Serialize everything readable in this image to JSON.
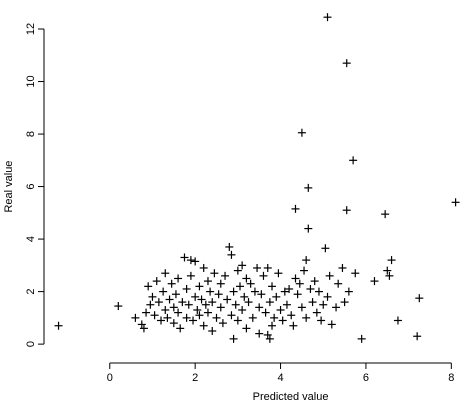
{
  "chart_data": {
    "type": "scatter",
    "title": "",
    "xlabel": "Predicted value",
    "ylabel": "Real value",
    "xlim": [
      -1.4,
      8.25
    ],
    "ylim": [
      -0.3,
      12.8
    ],
    "xticks": [
      0,
      2,
      4,
      6,
      8
    ],
    "yticks": [
      0,
      2,
      4,
      6,
      8,
      10,
      12
    ],
    "grid": false,
    "marker": "plus",
    "points": [
      {
        "x": -1.2,
        "y": 0.7
      },
      {
        "x": 0.2,
        "y": 1.45
      },
      {
        "x": 0.6,
        "y": 1.0
      },
      {
        "x": 0.75,
        "y": 0.75
      },
      {
        "x": 0.8,
        "y": 0.6
      },
      {
        "x": 0.85,
        "y": 1.2
      },
      {
        "x": 0.9,
        "y": 2.2
      },
      {
        "x": 0.95,
        "y": 1.5
      },
      {
        "x": 1.0,
        "y": 1.8
      },
      {
        "x": 1.05,
        "y": 1.1
      },
      {
        "x": 1.1,
        "y": 2.4
      },
      {
        "x": 1.15,
        "y": 1.6
      },
      {
        "x": 1.2,
        "y": 0.9
      },
      {
        "x": 1.25,
        "y": 2.0
      },
      {
        "x": 1.3,
        "y": 1.3
      },
      {
        "x": 1.3,
        "y": 2.7
      },
      {
        "x": 1.35,
        "y": 1.0
      },
      {
        "x": 1.4,
        "y": 1.7
      },
      {
        "x": 1.45,
        "y": 2.3
      },
      {
        "x": 1.5,
        "y": 0.8
      },
      {
        "x": 1.5,
        "y": 1.4
      },
      {
        "x": 1.55,
        "y": 1.9
      },
      {
        "x": 1.6,
        "y": 1.2
      },
      {
        "x": 1.6,
        "y": 2.5
      },
      {
        "x": 1.65,
        "y": 0.6
      },
      {
        "x": 1.7,
        "y": 1.6
      },
      {
        "x": 1.75,
        "y": 3.3
      },
      {
        "x": 1.8,
        "y": 2.1
      },
      {
        "x": 1.8,
        "y": 1.0
      },
      {
        "x": 1.85,
        "y": 1.5
      },
      {
        "x": 1.9,
        "y": 3.2
      },
      {
        "x": 1.9,
        "y": 2.6
      },
      {
        "x": 1.95,
        "y": 0.9
      },
      {
        "x": 2.0,
        "y": 1.8
      },
      {
        "x": 2.0,
        "y": 3.15
      },
      {
        "x": 2.05,
        "y": 1.3
      },
      {
        "x": 2.1,
        "y": 2.2
      },
      {
        "x": 2.1,
        "y": 1.1
      },
      {
        "x": 2.15,
        "y": 1.7
      },
      {
        "x": 2.2,
        "y": 2.9
      },
      {
        "x": 2.2,
        "y": 0.7
      },
      {
        "x": 2.25,
        "y": 1.5
      },
      {
        "x": 2.3,
        "y": 2.4
      },
      {
        "x": 2.3,
        "y": 1.2
      },
      {
        "x": 2.35,
        "y": 2.0
      },
      {
        "x": 2.4,
        "y": 1.6
      },
      {
        "x": 2.4,
        "y": 0.5
      },
      {
        "x": 2.45,
        "y": 2.7
      },
      {
        "x": 2.5,
        "y": 1.0
      },
      {
        "x": 2.55,
        "y": 1.9
      },
      {
        "x": 2.6,
        "y": 2.3
      },
      {
        "x": 2.6,
        "y": 1.4
      },
      {
        "x": 2.65,
        "y": 0.8
      },
      {
        "x": 2.7,
        "y": 2.6
      },
      {
        "x": 2.75,
        "y": 1.7
      },
      {
        "x": 2.8,
        "y": 3.7
      },
      {
        "x": 2.85,
        "y": 3.4
      },
      {
        "x": 2.85,
        "y": 1.1
      },
      {
        "x": 2.9,
        "y": 2.0
      },
      {
        "x": 2.9,
        "y": 0.2
      },
      {
        "x": 2.95,
        "y": 1.5
      },
      {
        "x": 3.0,
        "y": 2.8
      },
      {
        "x": 3.0,
        "y": 0.9
      },
      {
        "x": 3.05,
        "y": 2.2
      },
      {
        "x": 3.1,
        "y": 3.0
      },
      {
        "x": 3.1,
        "y": 1.3
      },
      {
        "x": 3.15,
        "y": 1.8
      },
      {
        "x": 3.2,
        "y": 2.5
      },
      {
        "x": 3.2,
        "y": 0.6
      },
      {
        "x": 3.25,
        "y": 1.6
      },
      {
        "x": 3.3,
        "y": 2.3
      },
      {
        "x": 3.35,
        "y": 1.0
      },
      {
        "x": 3.4,
        "y": 2.0
      },
      {
        "x": 3.45,
        "y": 2.9
      },
      {
        "x": 3.5,
        "y": 1.4
      },
      {
        "x": 3.5,
        "y": 0.4
      },
      {
        "x": 3.55,
        "y": 1.9
      },
      {
        "x": 3.6,
        "y": 2.6
      },
      {
        "x": 3.65,
        "y": 1.2
      },
      {
        "x": 3.7,
        "y": 2.9
      },
      {
        "x": 3.7,
        "y": 0.35
      },
      {
        "x": 3.75,
        "y": 0.2
      },
      {
        "x": 3.75,
        "y": 1.6
      },
      {
        "x": 3.8,
        "y": 2.2
      },
      {
        "x": 3.8,
        "y": 0.7
      },
      {
        "x": 3.85,
        "y": 1.0
      },
      {
        "x": 3.9,
        "y": 1.8
      },
      {
        "x": 3.95,
        "y": 2.7
      },
      {
        "x": 4.0,
        "y": 1.3
      },
      {
        "x": 4.05,
        "y": 0.9
      },
      {
        "x": 4.1,
        "y": 2.0
      },
      {
        "x": 4.15,
        "y": 1.5
      },
      {
        "x": 4.2,
        "y": 2.1
      },
      {
        "x": 4.25,
        "y": 1.1
      },
      {
        "x": 4.3,
        "y": 0.7
      },
      {
        "x": 4.35,
        "y": 2.5
      },
      {
        "x": 4.4,
        "y": 1.9
      },
      {
        "x": 4.45,
        "y": 2.3
      },
      {
        "x": 4.5,
        "y": 8.05
      },
      {
        "x": 4.5,
        "y": 1.4
      },
      {
        "x": 4.55,
        "y": 2.8
      },
      {
        "x": 4.6,
        "y": 3.2
      },
      {
        "x": 4.6,
        "y": 1.0
      },
      {
        "x": 4.65,
        "y": 5.95
      },
      {
        "x": 4.65,
        "y": 4.4
      },
      {
        "x": 4.7,
        "y": 2.1
      },
      {
        "x": 4.75,
        "y": 1.6
      },
      {
        "x": 4.8,
        "y": 2.4
      },
      {
        "x": 4.85,
        "y": 1.2
      },
      {
        "x": 4.9,
        "y": 2.0
      },
      {
        "x": 4.95,
        "y": 0.9
      },
      {
        "x": 5.0,
        "y": 1.5
      },
      {
        "x": 5.05,
        "y": 3.65
      },
      {
        "x": 5.1,
        "y": 12.45
      },
      {
        "x": 5.1,
        "y": 1.8
      },
      {
        "x": 5.15,
        "y": 2.6
      },
      {
        "x": 5.2,
        "y": 0.75
      },
      {
        "x": 5.3,
        "y": 1.4
      },
      {
        "x": 5.35,
        "y": 2.3
      },
      {
        "x": 5.45,
        "y": 2.9
      },
      {
        "x": 5.5,
        "y": 1.6
      },
      {
        "x": 5.55,
        "y": 10.7
      },
      {
        "x": 5.55,
        "y": 5.1
      },
      {
        "x": 5.6,
        "y": 2.0
      },
      {
        "x": 5.7,
        "y": 7.0
      },
      {
        "x": 5.75,
        "y": 2.7
      },
      {
        "x": 5.9,
        "y": 0.2
      },
      {
        "x": 4.35,
        "y": 5.15
      },
      {
        "x": 6.2,
        "y": 2.4
      },
      {
        "x": 6.45,
        "y": 4.95
      },
      {
        "x": 6.5,
        "y": 2.8
      },
      {
        "x": 6.55,
        "y": 2.6
      },
      {
        "x": 6.6,
        "y": 3.2
      },
      {
        "x": 6.75,
        "y": 0.9
      },
      {
        "x": 7.2,
        "y": 0.3
      },
      {
        "x": 7.25,
        "y": 1.75
      },
      {
        "x": 8.1,
        "y": 5.4
      }
    ]
  }
}
